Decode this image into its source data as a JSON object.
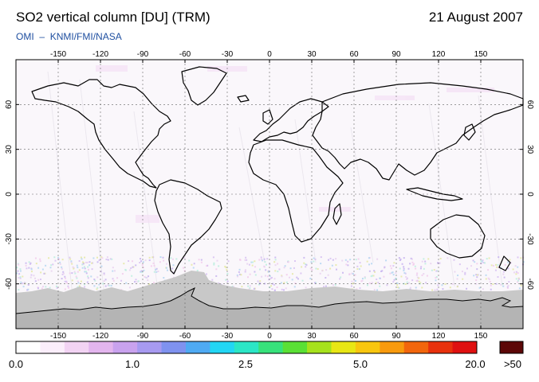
{
  "header": {
    "title": "SO2 vertical column [DU] (TRM)",
    "date": "21 August 2007",
    "credit_left": "OMI",
    "credit_dash": "–",
    "credit_right": "KNMI/FMI/NASA"
  },
  "map": {
    "projection": "equirectangular",
    "lon_range": [
      -180,
      180
    ],
    "lat_range": [
      -90,
      90
    ],
    "lon_ticks_top": [
      "-150",
      "-120",
      "-90",
      "-60",
      "-30",
      "0",
      "30",
      "60",
      "90",
      "120",
      "150"
    ],
    "lon_ticks_bottom": [
      "-150",
      "-120",
      "-90",
      "-60",
      "-30",
      "0",
      "30",
      "60",
      "90",
      "120",
      "150"
    ],
    "lat_ticks_left": [
      "60",
      "30",
      "0",
      "-30",
      "-60"
    ],
    "lat_ticks_right": [
      "60",
      "30",
      "0",
      "-30",
      "-60"
    ],
    "lon_values": [
      -150,
      -120,
      -90,
      -60,
      -30,
      0,
      30,
      60,
      90,
      120,
      150
    ],
    "lat_values": [
      60,
      30,
      0,
      -30,
      -60
    ],
    "gridlines": true,
    "land_outline_color": "#000000",
    "no_data_color": "#b4b4b4",
    "polar_no_data_color": "#c8c8c8",
    "background_color": "#faf7fb"
  },
  "colorbar": {
    "labels": [
      "0.0",
      "1.0",
      "2.5",
      "5.0",
      "20.0",
      ">50"
    ],
    "colors": [
      "#ffffff",
      "#fbeefb",
      "#f2d3f3",
      "#e3b5ee",
      "#c9a2ee",
      "#a79af0",
      "#7f92ef",
      "#4faaf3",
      "#22d6f4",
      "#2be6c6",
      "#37e27b",
      "#5ae035",
      "#a6e21c",
      "#e8e614",
      "#f8c60e",
      "#f89a0d",
      "#f2660c",
      "#e8310c",
      "#df1010"
    ],
    "overflow_color": "#5c0707"
  }
}
